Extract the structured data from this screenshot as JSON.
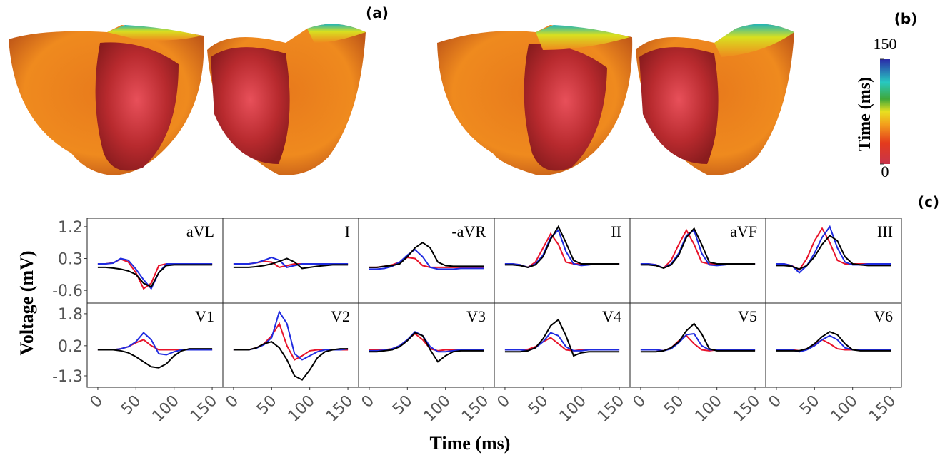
{
  "panel_labels": [
    "(a)",
    "(b)",
    "(c)"
  ],
  "colorbar": {
    "label": "Time (ms)",
    "lim": [
      0,
      150
    ],
    "ticks": [
      0,
      150
    ]
  },
  "axis_labels": {
    "x": "Time (ms)",
    "y": "Voltage (mV)"
  },
  "chart_data": [
    {
      "type": "line",
      "title": "aVL",
      "x": [
        0,
        10,
        20,
        30,
        40,
        50,
        60,
        70,
        80,
        90,
        100,
        110,
        120,
        130,
        140,
        150
      ],
      "xlim": [
        -14,
        164
      ],
      "ylim": [
        -0.96,
        1.44
      ],
      "yticks": [
        1.2,
        0.3,
        -0.6
      ],
      "series": [
        {
          "color": "#e8132a",
          "values": [
            0.15,
            0.15,
            0.18,
            0.28,
            0.2,
            -0.1,
            -0.55,
            -0.4,
            0.1,
            0.15,
            0.15,
            0.15,
            0.15,
            0.15,
            0.15,
            0.15
          ]
        },
        {
          "color": "#1f2be0",
          "values": [
            0.15,
            0.15,
            0.17,
            0.3,
            0.25,
            0.0,
            -0.3,
            -0.55,
            -0.1,
            0.15,
            0.15,
            0.15,
            0.15,
            0.15,
            0.15,
            0.15
          ]
        },
        {
          "color": "#000000",
          "values": [
            0.05,
            0.05,
            0.03,
            0.0,
            -0.05,
            -0.15,
            -0.4,
            -0.5,
            -0.1,
            0.1,
            0.12,
            0.12,
            0.12,
            0.12,
            0.12,
            0.12
          ]
        }
      ]
    },
    {
      "type": "line",
      "title": "I",
      "x": [
        0,
        10,
        20,
        30,
        40,
        50,
        60,
        70,
        80,
        90,
        100,
        110,
        120,
        130,
        140,
        150
      ],
      "xlim": [
        -14,
        164
      ],
      "ylim": [
        -0.96,
        1.44
      ],
      "series": [
        {
          "color": "#e8132a",
          "values": [
            0.15,
            0.15,
            0.15,
            0.18,
            0.22,
            0.2,
            0.05,
            0.1,
            0.15,
            0.15,
            0.15,
            0.15,
            0.15,
            0.15,
            0.15,
            0.15
          ]
        },
        {
          "color": "#1f2be0",
          "values": [
            0.15,
            0.15,
            0.15,
            0.18,
            0.25,
            0.33,
            0.25,
            0.05,
            0.1,
            0.15,
            0.15,
            0.15,
            0.15,
            0.15,
            0.15,
            0.15
          ]
        },
        {
          "color": "#000000",
          "values": [
            0.05,
            0.05,
            0.05,
            0.07,
            0.1,
            0.15,
            0.22,
            0.3,
            0.2,
            0.02,
            0.05,
            0.08,
            0.1,
            0.12,
            0.12,
            0.12
          ]
        }
      ]
    },
    {
      "type": "line",
      "title": "-aVR",
      "x": [
        0,
        10,
        20,
        30,
        40,
        50,
        60,
        70,
        80,
        90,
        100,
        110,
        120,
        130,
        140,
        150
      ],
      "xlim": [
        -14,
        164
      ],
      "ylim": [
        -0.96,
        1.44
      ],
      "series": [
        {
          "color": "#e8132a",
          "values": [
            0.05,
            0.05,
            0.08,
            0.12,
            0.2,
            0.33,
            0.3,
            0.1,
            0.05,
            0.05,
            0.05,
            0.05,
            0.05,
            0.05,
            0.05,
            0.05
          ]
        },
        {
          "color": "#1f2be0",
          "values": [
            0.0,
            0.0,
            0.02,
            0.08,
            0.2,
            0.4,
            0.55,
            0.35,
            0.05,
            0.0,
            0.0,
            0.0,
            0.02,
            0.02,
            0.02,
            0.02
          ]
        },
        {
          "color": "#000000",
          "values": [
            0.05,
            0.05,
            0.08,
            0.1,
            0.15,
            0.35,
            0.6,
            0.75,
            0.6,
            0.2,
            0.1,
            0.08,
            0.08,
            0.08,
            0.08,
            0.08
          ]
        }
      ]
    },
    {
      "type": "line",
      "title": "II",
      "x": [
        0,
        10,
        20,
        30,
        40,
        50,
        60,
        70,
        80,
        90,
        100,
        110,
        120,
        130,
        140,
        150
      ],
      "xlim": [
        -14,
        164
      ],
      "ylim": [
        -0.96,
        1.44
      ],
      "series": [
        {
          "color": "#e8132a",
          "values": [
            0.15,
            0.15,
            0.12,
            0.05,
            0.2,
            0.6,
            1.0,
            0.7,
            0.2,
            0.15,
            0.15,
            0.15,
            0.15,
            0.15,
            0.15,
            0.15
          ]
        },
        {
          "color": "#1f2be0",
          "values": [
            0.15,
            0.15,
            0.12,
            0.05,
            0.15,
            0.4,
            0.9,
            1.1,
            0.5,
            0.15,
            0.1,
            0.12,
            0.15,
            0.15,
            0.15,
            0.15
          ]
        },
        {
          "color": "#000000",
          "values": [
            0.12,
            0.12,
            0.1,
            0.05,
            0.12,
            0.35,
            0.85,
            1.2,
            0.75,
            0.25,
            0.15,
            0.15,
            0.15,
            0.15,
            0.15,
            0.15
          ]
        }
      ]
    },
    {
      "type": "line",
      "title": "aVF",
      "x": [
        0,
        10,
        20,
        30,
        40,
        50,
        60,
        70,
        80,
        90,
        100,
        110,
        120,
        130,
        140,
        150
      ],
      "xlim": [
        -14,
        164
      ],
      "ylim": [
        -0.96,
        1.44
      ],
      "series": [
        {
          "color": "#e8132a",
          "values": [
            0.15,
            0.15,
            0.12,
            0.03,
            0.25,
            0.7,
            1.1,
            0.7,
            0.2,
            0.15,
            0.15,
            0.15,
            0.15,
            0.15,
            0.15,
            0.15
          ]
        },
        {
          "color": "#1f2be0",
          "values": [
            0.15,
            0.15,
            0.12,
            0.03,
            0.15,
            0.45,
            0.95,
            1.1,
            0.45,
            0.12,
            0.1,
            0.12,
            0.15,
            0.15,
            0.15,
            0.15
          ]
        },
        {
          "color": "#000000",
          "values": [
            0.12,
            0.12,
            0.1,
            0.03,
            0.12,
            0.4,
            0.9,
            1.15,
            0.7,
            0.2,
            0.15,
            0.15,
            0.15,
            0.15,
            0.15,
            0.15
          ]
        }
      ]
    },
    {
      "type": "line",
      "title": "III",
      "x": [
        0,
        10,
        20,
        30,
        40,
        50,
        60,
        70,
        80,
        90,
        100,
        110,
        120,
        130,
        140,
        150
      ],
      "xlim": [
        -14,
        164
      ],
      "ylim": [
        -0.96,
        1.44
      ],
      "series": [
        {
          "color": "#e8132a",
          "values": [
            0.15,
            0.15,
            0.1,
            -0.02,
            0.3,
            0.8,
            1.15,
            0.75,
            0.25,
            0.15,
            0.15,
            0.15,
            0.15,
            0.15,
            0.15,
            0.15
          ]
        },
        {
          "color": "#1f2be0",
          "values": [
            0.15,
            0.15,
            0.1,
            -0.1,
            0.1,
            0.45,
            0.9,
            1.2,
            0.6,
            0.2,
            0.12,
            0.12,
            0.15,
            0.15,
            0.15,
            0.15
          ]
        },
        {
          "color": "#000000",
          "values": [
            0.1,
            0.1,
            0.08,
            0.0,
            0.1,
            0.35,
            0.7,
            0.95,
            0.8,
            0.35,
            0.15,
            0.12,
            0.1,
            0.1,
            0.1,
            0.1
          ]
        }
      ]
    },
    {
      "type": "line",
      "title": "V1",
      "x": [
        0,
        10,
        20,
        30,
        40,
        50,
        60,
        70,
        80,
        90,
        100,
        110,
        120,
        130,
        140,
        150
      ],
      "xlim": [
        -14,
        164
      ],
      "ylim": [
        -1.87,
        2.33
      ],
      "yticks": [
        1.8,
        0.2,
        -1.3
      ],
      "xticks": [
        0,
        50,
        100,
        150
      ],
      "series": [
        {
          "color": "#e8132a",
          "values": [
            0,
            0,
            0,
            0.05,
            0.15,
            0.35,
            0.5,
            0.2,
            0.0,
            0,
            0,
            0,
            0,
            0,
            0,
            0
          ]
        },
        {
          "color": "#1f2be0",
          "values": [
            0,
            0,
            0,
            0.05,
            0.15,
            0.4,
            0.85,
            0.5,
            -0.2,
            -0.25,
            -0.1,
            0,
            0,
            0,
            0,
            0
          ]
        },
        {
          "color": "#000000",
          "values": [
            0,
            0,
            0,
            -0.05,
            -0.15,
            -0.35,
            -0.6,
            -0.85,
            -0.9,
            -0.7,
            -0.3,
            -0.05,
            0.05,
            0.05,
            0.05,
            0.05
          ]
        }
      ]
    },
    {
      "type": "line",
      "title": "V2",
      "x": [
        0,
        10,
        20,
        30,
        40,
        50,
        60,
        70,
        80,
        90,
        100,
        110,
        120,
        130,
        140,
        150
      ],
      "xlim": [
        -14,
        164
      ],
      "ylim": [
        -1.87,
        2.33
      ],
      "xticks": [
        0,
        50,
        100,
        150
      ],
      "series": [
        {
          "color": "#e8132a",
          "values": [
            0,
            0,
            0,
            0.1,
            0.3,
            0.7,
            1.3,
            0.2,
            -0.5,
            -0.3,
            -0.05,
            0,
            0,
            0,
            0,
            0
          ]
        },
        {
          "color": "#1f2be0",
          "values": [
            0,
            0,
            0,
            0.08,
            0.25,
            0.6,
            1.9,
            1.3,
            -0.2,
            -0.5,
            -0.3,
            -0.1,
            0,
            0,
            0,
            0.05
          ]
        },
        {
          "color": "#000000",
          "values": [
            0,
            0,
            0,
            0.1,
            0.3,
            0.4,
            0.1,
            -0.5,
            -1.3,
            -1.5,
            -1.0,
            -0.4,
            -0.1,
            0,
            0.05,
            0.05
          ]
        }
      ]
    },
    {
      "type": "line",
      "title": "V3",
      "x": [
        0,
        10,
        20,
        30,
        40,
        50,
        60,
        70,
        80,
        90,
        100,
        110,
        120,
        130,
        140,
        150
      ],
      "xlim": [
        -14,
        164
      ],
      "ylim": [
        -1.87,
        2.33
      ],
      "xticks": [
        0,
        50,
        100,
        150
      ],
      "series": [
        {
          "color": "#e8132a",
          "values": [
            0,
            0,
            0,
            0.05,
            0.2,
            0.5,
            0.8,
            0.5,
            0.05,
            -0.05,
            0,
            0,
            0,
            0,
            0,
            0
          ]
        },
        {
          "color": "#1f2be0",
          "values": [
            -0.05,
            -0.05,
            -0.02,
            0.05,
            0.2,
            0.5,
            0.9,
            0.7,
            0.15,
            -0.1,
            -0.1,
            -0.05,
            0,
            0,
            0,
            0
          ]
        },
        {
          "color": "#000000",
          "values": [
            -0.1,
            -0.1,
            -0.05,
            0,
            0.15,
            0.45,
            0.85,
            0.7,
            0.0,
            -0.6,
            -0.3,
            -0.1,
            -0.05,
            -0.05,
            -0.05,
            -0.05
          ]
        }
      ]
    },
    {
      "type": "line",
      "title": "V4",
      "x": [
        0,
        10,
        20,
        30,
        40,
        50,
        60,
        70,
        80,
        90,
        100,
        110,
        120,
        130,
        140,
        150
      ],
      "xlim": [
        -14,
        164
      ],
      "ylim": [
        -1.87,
        2.33
      ],
      "xticks": [
        0,
        50,
        100,
        150
      ],
      "series": [
        {
          "color": "#e8132a",
          "values": [
            0,
            0,
            0,
            0.02,
            0.15,
            0.4,
            0.6,
            0.3,
            0.0,
            -0.05,
            0,
            0,
            0,
            0,
            0,
            0
          ]
        },
        {
          "color": "#1f2be0",
          "values": [
            0,
            0,
            0,
            -0.05,
            0.1,
            0.4,
            0.85,
            0.7,
            0.15,
            -0.05,
            -0.05,
            0,
            0,
            0,
            0,
            0
          ]
        },
        {
          "color": "#000000",
          "values": [
            -0.1,
            -0.1,
            -0.1,
            -0.05,
            0.1,
            0.55,
            1.2,
            1.5,
            0.7,
            -0.3,
            -0.15,
            -0.1,
            -0.1,
            -0.1,
            -0.1,
            -0.1
          ]
        }
      ]
    },
    {
      "type": "line",
      "title": "V5",
      "x": [
        0,
        10,
        20,
        30,
        40,
        50,
        60,
        70,
        80,
        90,
        100,
        110,
        120,
        130,
        140,
        150
      ],
      "xlim": [
        -14,
        164
      ],
      "ylim": [
        -1.87,
        2.33
      ],
      "xticks": [
        0,
        50,
        100,
        150
      ],
      "series": [
        {
          "color": "#e8132a",
          "values": [
            0,
            0,
            0,
            -0.05,
            0.1,
            0.45,
            0.7,
            0.3,
            0.0,
            -0.05,
            0,
            0,
            0,
            0,
            0,
            0
          ]
        },
        {
          "color": "#1f2be0",
          "values": [
            0,
            0,
            0,
            -0.05,
            0.05,
            0.35,
            0.75,
            0.8,
            0.2,
            0,
            0,
            0,
            0,
            0,
            0,
            0
          ]
        },
        {
          "color": "#000000",
          "values": [
            -0.1,
            -0.1,
            -0.1,
            -0.05,
            0.1,
            0.4,
            0.95,
            1.3,
            0.8,
            0.05,
            -0.05,
            -0.05,
            -0.05,
            -0.05,
            -0.05,
            -0.05
          ]
        }
      ]
    },
    {
      "type": "line",
      "title": "V6",
      "x": [
        0,
        10,
        20,
        30,
        40,
        50,
        60,
        70,
        80,
        90,
        100,
        110,
        120,
        130,
        140,
        150
      ],
      "xlim": [
        -14,
        164
      ],
      "ylim": [
        -1.87,
        2.33
      ],
      "xticks": [
        0,
        50,
        100,
        150
      ],
      "series": [
        {
          "color": "#e8132a",
          "values": [
            0,
            0,
            0,
            -0.05,
            0.05,
            0.25,
            0.5,
            0.3,
            0.05,
            0,
            0,
            0,
            0,
            0,
            0,
            0
          ]
        },
        {
          "color": "#1f2be0",
          "values": [
            0,
            0,
            0,
            -0.1,
            0.0,
            0.2,
            0.5,
            0.7,
            0.5,
            0.1,
            0,
            0,
            0,
            0,
            0,
            0
          ]
        },
        {
          "color": "#000000",
          "values": [
            -0.05,
            -0.05,
            -0.05,
            -0.05,
            0.05,
            0.3,
            0.65,
            0.9,
            0.75,
            0.3,
            0,
            -0.05,
            -0.05,
            -0.05,
            -0.05,
            -0.05
          ]
        }
      ]
    }
  ]
}
